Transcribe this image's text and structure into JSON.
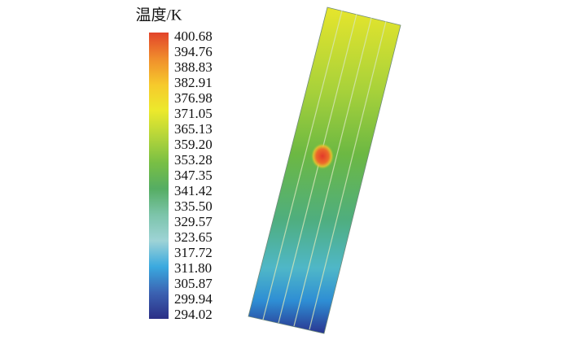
{
  "colorbar": {
    "title": "温度/K",
    "ticks": [
      400.68,
      394.76,
      388.83,
      382.91,
      376.98,
      371.05,
      365.13,
      {
        "value": 359.2,
        "label": "359.20"
      },
      353.28,
      347.35,
      341.42,
      {
        "value": 335.5,
        "label": "335.50"
      },
      329.57,
      323.65,
      317.72,
      {
        "value": 311.8,
        "label": "311.80"
      },
      305.87,
      299.94,
      294.02
    ],
    "colors": [
      "#2b2f86",
      "#3b62b2",
      "#3aa9df",
      "#9ed3d6",
      "#7cc4aa",
      "#55ad63",
      "#79bf44",
      "#b4d53a",
      "#ece92c",
      "#f6c92c",
      "#f08d2c",
      "#e2432a"
    ]
  }
}
